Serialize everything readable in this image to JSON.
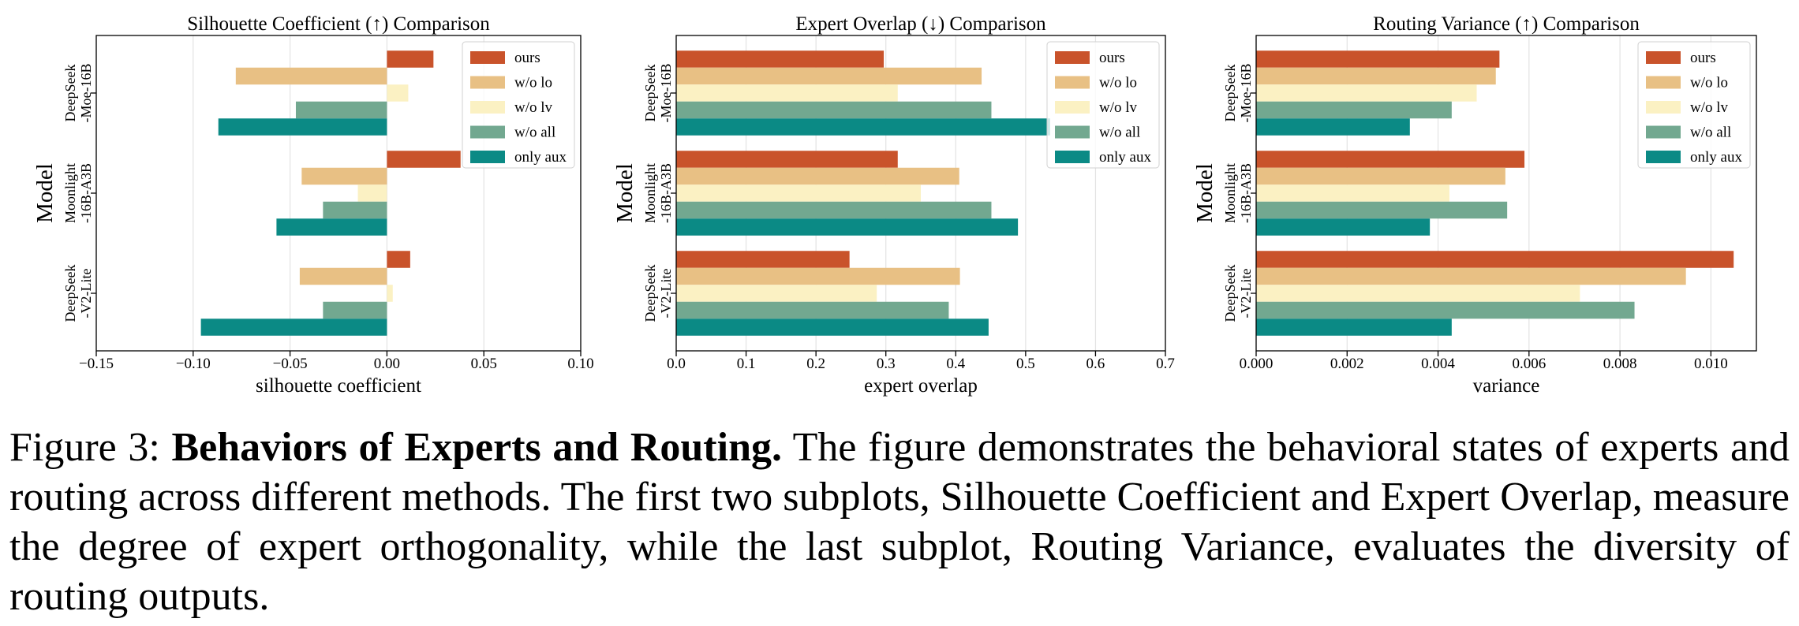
{
  "legend_labels": [
    "ours",
    "w/o lo",
    "w/o lv",
    "w/o all",
    "only aux"
  ],
  "colors": {
    "ours": "#c9532b",
    "w/o lo": "#e8c084",
    "w/o lv": "#fbf1c3",
    "w/o all": "#72a890",
    "only aux": "#0b8a85"
  },
  "model_axis_label": "Model",
  "chart_data": [
    {
      "type": "bar",
      "orientation": "horizontal",
      "title": "Silhouette Coefficient (↑) Comparison",
      "xlabel": "silhouette coefficient",
      "ylabel": "Model",
      "xlim": [
        -0.15,
        0.1
      ],
      "xticks": [
        -0.15,
        -0.1,
        -0.05,
        0.0,
        0.05,
        0.1
      ],
      "xtick_labels": [
        "−0.15",
        "−0.10",
        "−0.05",
        "0.00",
        "0.05",
        "0.10"
      ],
      "grid": "vertical",
      "legend": "top-right",
      "categories": [
        [
          "DeepSeek",
          "-Moe-16B"
        ],
        [
          "Moonlight",
          "-16B-A3B"
        ],
        [
          "DeepSeek",
          "-V2-Lite"
        ]
      ],
      "series": [
        {
          "name": "ours",
          "values": [
            0.024,
            0.038,
            0.012
          ]
        },
        {
          "name": "w/o lo",
          "values": [
            -0.078,
            -0.044,
            -0.045
          ]
        },
        {
          "name": "w/o lv",
          "values": [
            0.011,
            -0.015,
            0.003
          ]
        },
        {
          "name": "w/o all",
          "values": [
            -0.047,
            -0.033,
            -0.033
          ]
        },
        {
          "name": "only aux",
          "values": [
            -0.087,
            -0.057,
            -0.096
          ]
        }
      ]
    },
    {
      "type": "bar",
      "orientation": "horizontal",
      "title": "Expert Overlap (↓) Comparison",
      "xlabel": "expert overlap",
      "ylabel": "Model",
      "xlim": [
        0.0,
        0.7
      ],
      "xticks": [
        0.0,
        0.1,
        0.2,
        0.3,
        0.4,
        0.5,
        0.6,
        0.7
      ],
      "xtick_labels": [
        "0.0",
        "0.1",
        "0.2",
        "0.3",
        "0.4",
        "0.5",
        "0.6",
        "0.7"
      ],
      "grid": "vertical",
      "legend": "top-right",
      "categories": [
        [
          "DeepSeek",
          "-Moe-16B"
        ],
        [
          "Moonlight",
          "-16B-A3B"
        ],
        [
          "DeepSeek",
          "-V2-Lite"
        ]
      ],
      "series": [
        {
          "name": "ours",
          "values": [
            0.297,
            0.317,
            0.248
          ]
        },
        {
          "name": "w/o lo",
          "values": [
            0.437,
            0.405,
            0.406
          ]
        },
        {
          "name": "w/o lv",
          "values": [
            0.317,
            0.35,
            0.287
          ]
        },
        {
          "name": "w/o all",
          "values": [
            0.451,
            0.451,
            0.39
          ]
        },
        {
          "name": "only aux",
          "values": [
            0.535,
            0.489,
            0.447
          ]
        }
      ]
    },
    {
      "type": "bar",
      "orientation": "horizontal",
      "title": "Routing Variance (↑) Comparison",
      "xlabel": "variance",
      "ylabel": "Model",
      "xlim": [
        0.0,
        0.011
      ],
      "xticks": [
        0.0,
        0.002,
        0.004,
        0.006,
        0.008,
        0.01
      ],
      "xtick_labels": [
        "0.000",
        "0.002",
        "0.004",
        "0.006",
        "0.008",
        "0.010"
      ],
      "grid": "vertical",
      "legend": "top-right",
      "categories": [
        [
          "DeepSeek",
          "-Moe-16B"
        ],
        [
          "Moonlight",
          "-16B-A3B"
        ],
        [
          "DeepSeek",
          "-V2-Lite"
        ]
      ],
      "series": [
        {
          "name": "ours",
          "values": [
            0.00535,
            0.0059,
            0.0105
          ]
        },
        {
          "name": "w/o lo",
          "values": [
            0.00527,
            0.00548,
            0.00945
          ]
        },
        {
          "name": "w/o lv",
          "values": [
            0.00485,
            0.00425,
            0.00712
          ]
        },
        {
          "name": "w/o all",
          "values": [
            0.0043,
            0.00552,
            0.00832
          ]
        },
        {
          "name": "only aux",
          "values": [
            0.00338,
            0.00382,
            0.0043
          ]
        }
      ]
    }
  ],
  "caption": {
    "label": "Figure 3:",
    "bold": "Behaviors of Experts and Routing.",
    "text": "The figure demonstrates the behavioral states of experts and routing across different methods. The first two subplots, Silhouette Coefficient and Expert Overlap, measure the degree of expert orthogonality, while the last subplot, Routing Variance, evaluates the diversity of routing outputs."
  }
}
